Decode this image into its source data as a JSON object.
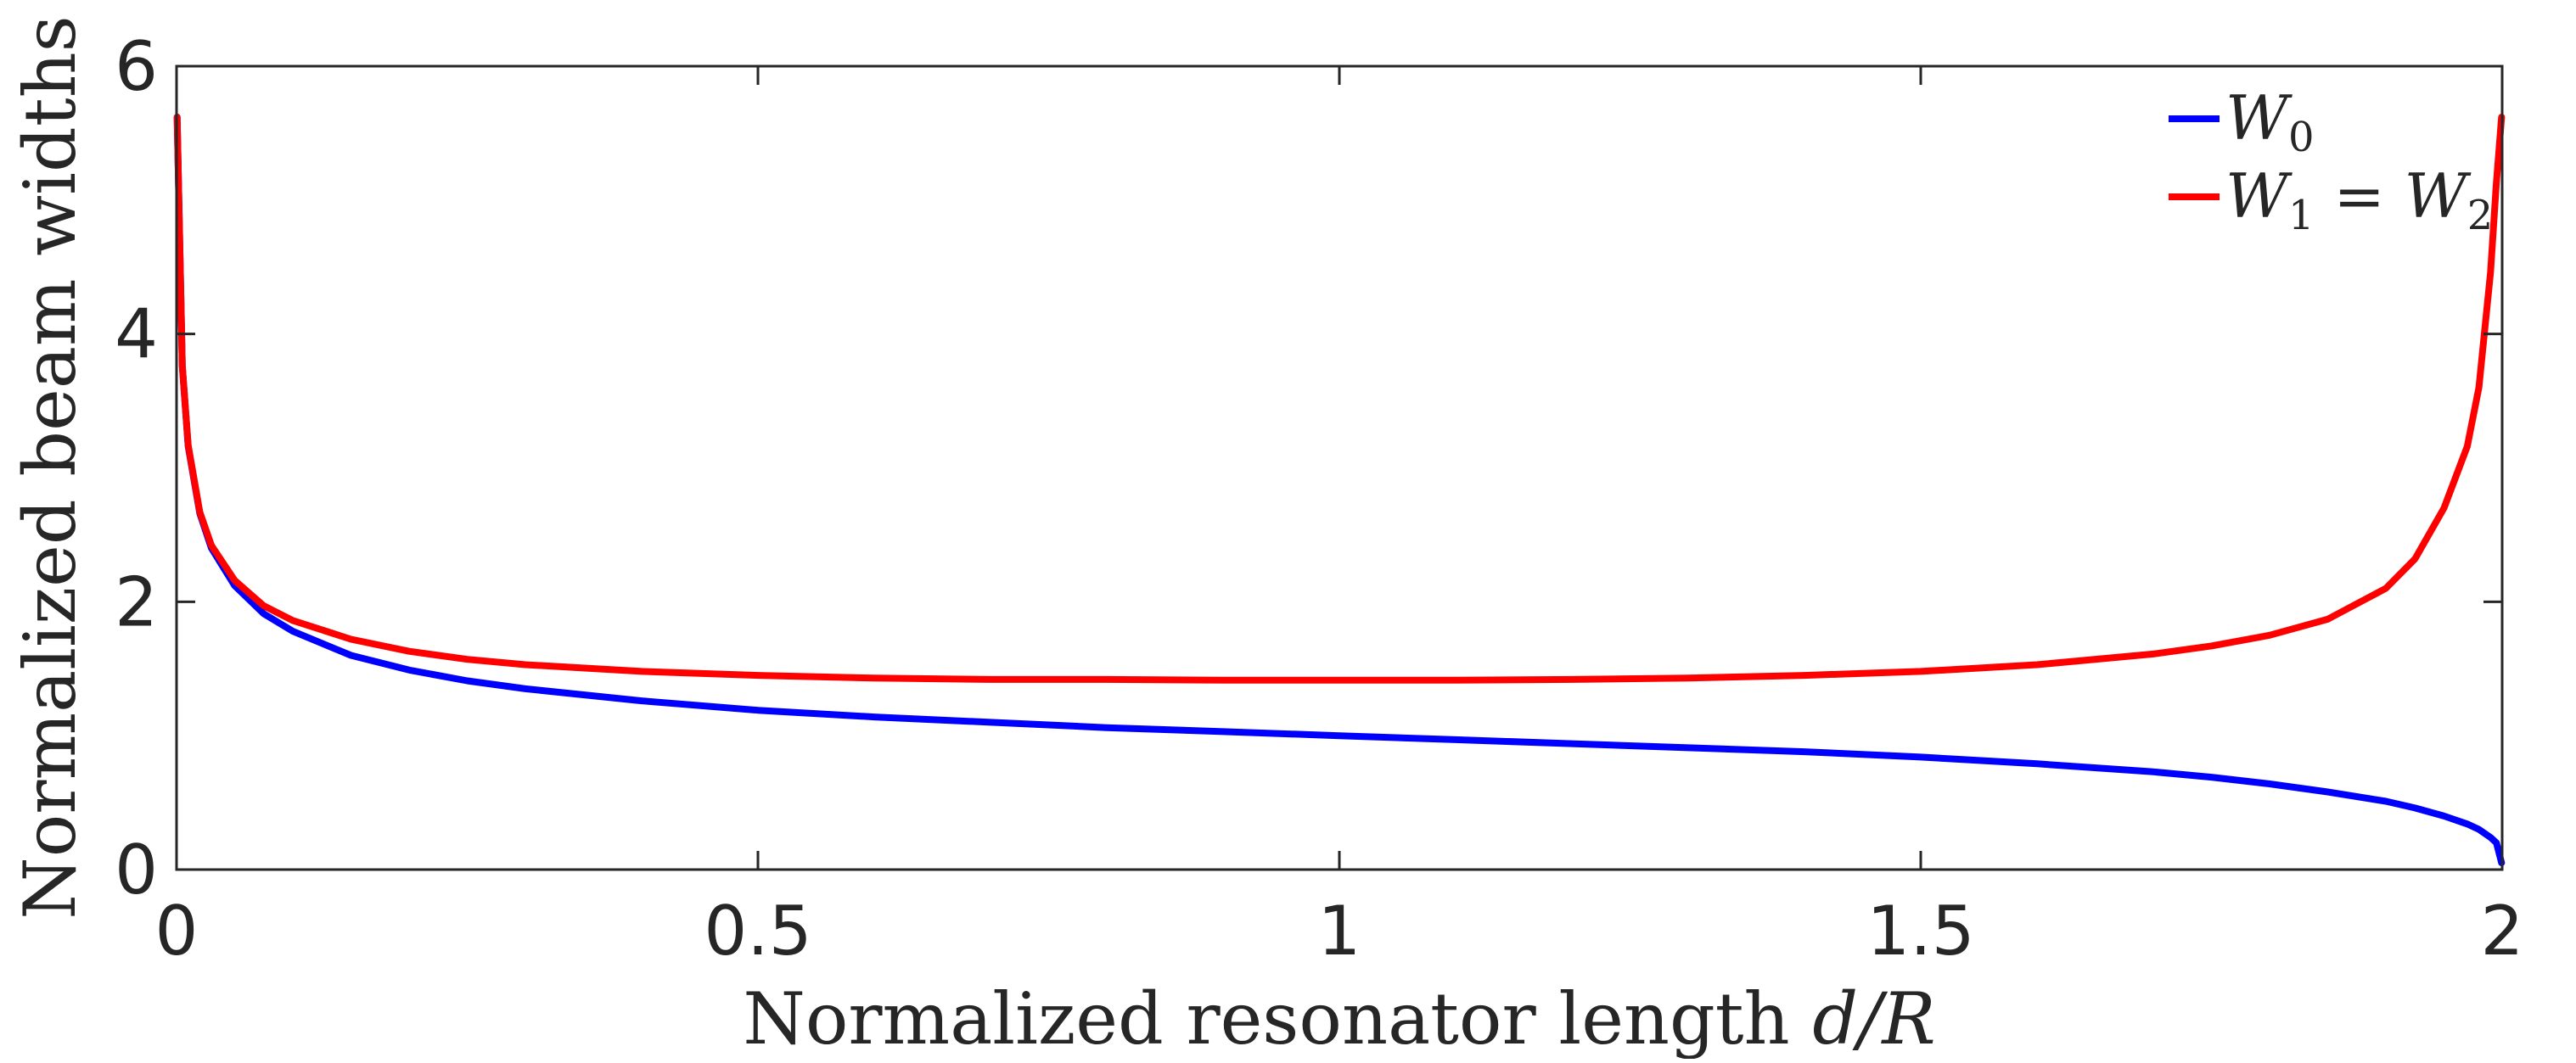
{
  "chart_data": {
    "type": "line",
    "title": "",
    "xlabel": "Normalized resonator length d/R",
    "xlabel_plain": "Normalized resonator length ",
    "xlabel_math": "d/R",
    "ylabel": "Normalized beam widths",
    "xlim": [
      0,
      2
    ],
    "ylim": [
      0,
      6
    ],
    "xticks": [
      0,
      0.5,
      1,
      1.5,
      2
    ],
    "xtick_labels": [
      "0",
      "0.5",
      "1",
      "1.5",
      "2"
    ],
    "yticks": [
      0,
      2,
      4,
      6
    ],
    "ytick_labels": [
      "0",
      "2",
      "4",
      "6"
    ],
    "grid": false,
    "legend_location": "top-right",
    "x": [
      0.0005,
      0.005,
      0.01,
      0.02,
      0.03,
      0.05,
      0.075,
      0.1,
      0.15,
      0.2,
      0.25,
      0.3,
      0.4,
      0.5,
      0.6,
      0.7,
      0.8,
      0.9,
      1.0,
      1.1,
      1.2,
      1.3,
      1.4,
      1.5,
      1.6,
      1.7,
      1.75,
      1.8,
      1.85,
      1.9,
      1.925,
      1.95,
      1.97,
      1.98,
      1.99,
      1.995,
      1.9995
    ],
    "series": [
      {
        "name": "W_0",
        "label_main": "W",
        "label_sub": "0",
        "color": "#0000ff",
        "values": [
          5.62,
          3.76,
          3.16,
          2.66,
          2.4,
          2.12,
          1.91,
          1.78,
          1.6,
          1.49,
          1.41,
          1.35,
          1.26,
          1.19,
          1.14,
          1.1,
          1.06,
          1.03,
          1.0,
          0.97,
          0.94,
          0.91,
          0.88,
          0.84,
          0.79,
          0.73,
          0.69,
          0.64,
          0.58,
          0.51,
          0.46,
          0.4,
          0.34,
          0.3,
          0.24,
          0.2,
          0.05
        ]
      },
      {
        "name": "W_1 = W_2",
        "label_main_1": "W",
        "label_sub_1": "1",
        "label_eq": " = ",
        "label_main_2": "W",
        "label_sub_2": "2",
        "color": "#ff0000",
        "values": [
          5.62,
          3.76,
          3.17,
          2.67,
          2.42,
          2.16,
          1.97,
          1.86,
          1.72,
          1.63,
          1.57,
          1.53,
          1.48,
          1.45,
          1.43,
          1.42,
          1.42,
          1.415,
          1.414,
          1.415,
          1.42,
          1.43,
          1.45,
          1.48,
          1.53,
          1.61,
          1.67,
          1.75,
          1.87,
          2.1,
          2.32,
          2.7,
          3.16,
          3.6,
          4.46,
          5.13,
          5.62
        ]
      }
    ]
  }
}
